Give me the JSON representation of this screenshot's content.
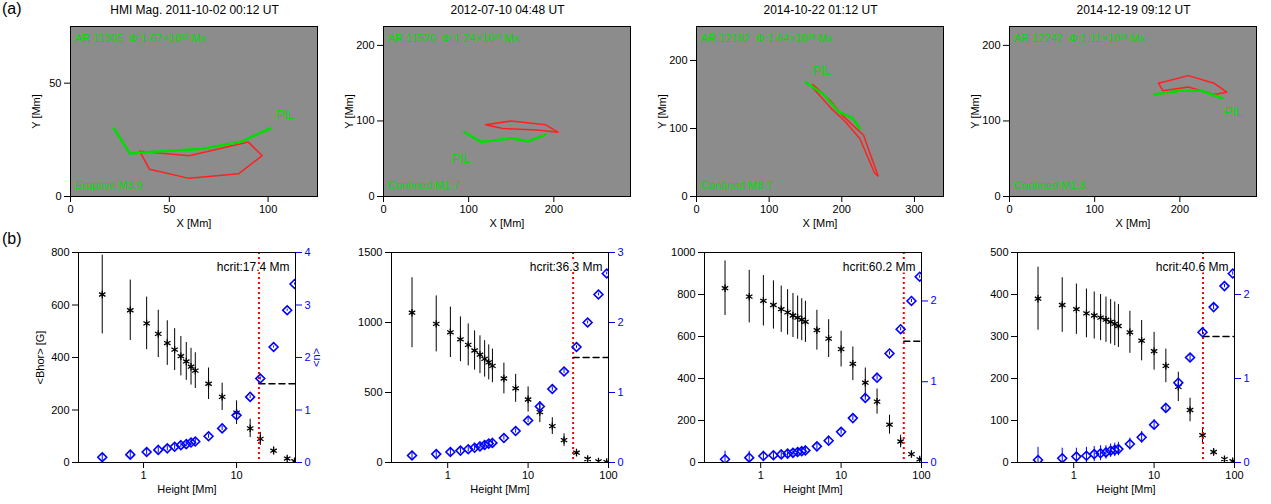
{
  "panel_labels": [
    "(a)",
    "(b)"
  ],
  "chart_data": [
    {
      "type": "magnetogram",
      "title": "HMI Mag. 2011-10-02 00:12 UT",
      "xlabel": "X [Mm]",
      "ylabel": "Y [Mm]",
      "xlim": [
        0,
        125
      ],
      "xticks": [
        0,
        50,
        100
      ],
      "ylim": [
        0,
        75
      ],
      "yticks": [
        0,
        50
      ],
      "color": "#00dd00",
      "ar_label": "AR 11305  Φ:1.67×10²² Mx",
      "flare_label": "Eruptive M3.9",
      "pil": {
        "label": "PIL",
        "x": [
          22,
          30,
          46,
          66,
          86,
          101
        ],
        "y": [
          30,
          19,
          20,
          21,
          24,
          30
        ],
        "label_x": 104,
        "label_y": 36
      },
      "contour": {
        "color": "#ff2020",
        "x": [
          35,
          40,
          60,
          85,
          97,
          90,
          60,
          35
        ],
        "y": [
          20,
          12,
          8,
          10,
          18,
          24,
          18,
          20
        ]
      }
    },
    {
      "type": "magnetogram",
      "title": "2012-07-10 04:48 UT",
      "xlabel": "X [Mm]",
      "ylabel": "Y [Mm]",
      "xlim": [
        0,
        290
      ],
      "xticks": [
        0,
        100,
        200
      ],
      "ylim": [
        0,
        225
      ],
      "yticks": [
        0,
        100,
        200
      ],
      "color": "#00dd00",
      "ar_label": "AR 11520  Φ:1.24×10²³ Mx",
      "flare_label": "Confined M1.7",
      "pil": {
        "label": "PIL",
        "x": [
          95,
          115,
          150,
          170,
          190
        ],
        "y": [
          85,
          72,
          77,
          73,
          82
        ],
        "label_x": 80,
        "label_y": 50
      },
      "contour": {
        "color": "#ff2020",
        "x": [
          120,
          150,
          190,
          205,
          180,
          140,
          120
        ],
        "y": [
          95,
          100,
          95,
          85,
          88,
          90,
          95
        ]
      }
    },
    {
      "type": "magnetogram",
      "title": "2014-10-22 01:12 UT",
      "xlabel": "X [Mm]",
      "ylabel": "Y [Mm]",
      "xlim": [
        0,
        340
      ],
      "xticks": [
        0,
        100,
        200,
        300
      ],
      "ylim": [
        0,
        250
      ],
      "yticks": [
        0,
        100,
        200
      ],
      "color": "#00dd00",
      "ar_label": "AR 12192  Φ:1.64×10²³ Mx",
      "flare_label": "Confined M8.7",
      "pil": {
        "label": "PIL",
        "x": [
          150,
          175,
          195,
          215,
          225
        ],
        "y": [
          168,
          150,
          125,
          115,
          100
        ],
        "label_x": 160,
        "label_y": 185
      },
      "contour": {
        "color": "#ff2020",
        "x": [
          160,
          185,
          200,
          215,
          230,
          240,
          250,
          245,
          225,
          205,
          185,
          160
        ],
        "y": [
          165,
          140,
          120,
          105,
          90,
          60,
          30,
          35,
          85,
          110,
          130,
          160
        ]
      }
    },
    {
      "type": "magnetogram",
      "title": "2014-12-19 09:12 UT",
      "xlabel": "X [Mm]",
      "ylabel": "Y [Mm]",
      "xlim": [
        0,
        290
      ],
      "xticks": [
        0,
        100,
        200
      ],
      "ylim": [
        0,
        225
      ],
      "yticks": [
        0,
        100,
        200
      ],
      "color": "#00dd00",
      "ar_label": "AR 12242  Φ:1.11×10²³ Mx",
      "flare_label": "Confined M1.3",
      "pil": {
        "label": "PIL",
        "x": [
          170,
          200,
          225,
          250
        ],
        "y": [
          135,
          140,
          140,
          130
        ],
        "label_x": 252,
        "label_y": 112
      },
      "contour": {
        "color": "#ff2020",
        "x": [
          175,
          210,
          240,
          255,
          240,
          210,
          180,
          175
        ],
        "y": [
          150,
          160,
          150,
          138,
          135,
          145,
          140,
          150
        ]
      }
    },
    {
      "type": "scatter",
      "log": "x",
      "xlabel": "Height [Mm]",
      "ylabel": "<Bhor> [G]",
      "y2label": "<n>",
      "xlim": [
        0.2,
        43
      ],
      "xticks": [
        1,
        10
      ],
      "ylim": [
        0,
        800
      ],
      "yticks": [
        0,
        200,
        400,
        600,
        800
      ],
      "y2lim": [
        0,
        4
      ],
      "y2ticks": [
        0,
        1,
        2,
        3,
        4
      ],
      "annotation": "hcrit:17.4 Mm",
      "hcrit": 17.4,
      "crit_n": 1.5,
      "x": [
        0.36,
        0.72,
        1.08,
        1.44,
        1.8,
        2.16,
        2.52,
        2.88,
        3.24,
        3.6,
        5,
        7,
        10,
        14,
        18,
        25,
        35,
        42
      ],
      "series": [
        {
          "color": "#000000",
          "marker": "asterisk",
          "values": [
            640,
            580,
            530,
            490,
            455,
            430,
            405,
            385,
            365,
            350,
            300,
            250,
            190,
            130,
            90,
            45,
            15,
            5
          ],
          "errors": [
            150,
            115,
            100,
            90,
            85,
            80,
            75,
            72,
            70,
            68,
            60,
            52,
            45,
            35,
            25,
            15,
            6,
            2
          ]
        },
        {
          "color": "#0000ff",
          "marker": "diamond",
          "axis": "y2",
          "values": [
            0.1,
            0.15,
            0.2,
            0.24,
            0.27,
            0.3,
            0.33,
            0.35,
            0.38,
            0.4,
            0.5,
            0.65,
            0.9,
            1.25,
            1.6,
            2.2,
            2.9,
            3.4
          ],
          "errors": [
            0.08,
            0.07,
            0.06,
            0.06,
            0.05,
            0.05,
            0.05,
            0.05,
            0.05,
            0.05,
            0.04,
            0.04,
            0.03,
            0.03,
            0.03,
            0.02,
            0.02,
            0.02
          ]
        }
      ]
    },
    {
      "type": "scatter",
      "log": "x",
      "xlabel": "Height [Mm]",
      "xlim": [
        0.2,
        100
      ],
      "xticks": [
        1,
        10,
        100
      ],
      "ylim": [
        0,
        1500
      ],
      "yticks": [
        0,
        500,
        1000,
        1500
      ],
      "y2lim": [
        0,
        3
      ],
      "y2ticks": [
        0,
        1,
        2,
        3
      ],
      "annotation": "hcrit:36.3 Mm",
      "hcrit": 36.3,
      "crit_n": 1.5,
      "x": [
        0.36,
        0.72,
        1.08,
        1.44,
        1.8,
        2.16,
        2.52,
        2.88,
        3.24,
        3.6,
        5,
        7,
        10,
        14,
        20,
        28,
        40,
        55,
        75,
        95
      ],
      "series": [
        {
          "color": "#000000",
          "marker": "asterisk",
          "values": [
            1070,
            990,
            930,
            880,
            840,
            800,
            770,
            740,
            715,
            690,
            600,
            530,
            450,
            360,
            260,
            160,
            70,
            25,
            8,
            3
          ],
          "errors": [
            250,
            200,
            180,
            160,
            150,
            140,
            135,
            130,
            125,
            120,
            110,
            100,
            90,
            75,
            60,
            45,
            25,
            10,
            4,
            2
          ]
        },
        {
          "color": "#0000ff",
          "marker": "diamond",
          "axis": "y2",
          "values": [
            0.1,
            0.12,
            0.15,
            0.17,
            0.19,
            0.21,
            0.23,
            0.25,
            0.27,
            0.28,
            0.35,
            0.45,
            0.6,
            0.8,
            1.05,
            1.3,
            1.65,
            2.0,
            2.4,
            2.7
          ],
          "errors": [
            0.06,
            0.05,
            0.05,
            0.04,
            0.04,
            0.04,
            0.04,
            0.04,
            0.04,
            0.04,
            0.03,
            0.03,
            0.03,
            0.03,
            0.03,
            0.03,
            0.02,
            0.02,
            0.02,
            0.02
          ]
        }
      ]
    },
    {
      "type": "scatter",
      "log": "x",
      "xlabel": "Height [Mm]",
      "xlim": [
        0.2,
        100
      ],
      "xticks": [
        1,
        10,
        100
      ],
      "ylim": [
        0,
        1000
      ],
      "yticks": [
        0,
        200,
        400,
        600,
        800,
        1000
      ],
      "y2lim": [
        0,
        2.6
      ],
      "y2ticks": [
        0,
        1,
        2
      ],
      "annotation": "hcrit:60.2 Mm",
      "hcrit": 60.2,
      "crit_n": 1.5,
      "x": [
        0.36,
        0.72,
        1.08,
        1.44,
        1.8,
        2.16,
        2.52,
        2.88,
        3.24,
        3.6,
        5,
        7,
        10,
        14,
        20,
        28,
        40,
        55,
        75,
        95
      ],
      "series": [
        {
          "color": "#000000",
          "marker": "asterisk",
          "values": [
            830,
            790,
            770,
            750,
            730,
            715,
            700,
            690,
            680,
            670,
            630,
            590,
            540,
            470,
            380,
            290,
            180,
            100,
            40,
            15
          ],
          "errors": [
            130,
            125,
            120,
            115,
            110,
            108,
            105,
            103,
            100,
            98,
            95,
            90,
            85,
            80,
            70,
            60,
            45,
            30,
            15,
            6
          ]
        },
        {
          "color": "#0000ff",
          "marker": "diamond",
          "axis": "y2",
          "values": [
            0.04,
            0.06,
            0.08,
            0.09,
            0.1,
            0.11,
            0.12,
            0.13,
            0.14,
            0.15,
            0.2,
            0.27,
            0.38,
            0.55,
            0.8,
            1.05,
            1.35,
            1.65,
            2.0,
            2.3
          ],
          "errors": [
            0.1,
            0.08,
            0.06,
            0.05,
            0.05,
            0.05,
            0.05,
            0.05,
            0.04,
            0.04,
            0.04,
            0.04,
            0.03,
            0.03,
            0.03,
            0.03,
            0.02,
            0.02,
            0.02,
            0.02
          ]
        }
      ]
    },
    {
      "type": "scatter",
      "log": "x",
      "xlabel": "Height [Mm]",
      "xlim": [
        0.2,
        100
      ],
      "xticks": [
        1,
        10,
        100
      ],
      "ylim": [
        0,
        500
      ],
      "yticks": [
        0,
        100,
        200,
        300,
        400,
        500
      ],
      "y2lim": [
        0,
        2.5
      ],
      "y2ticks": [
        0,
        1,
        2
      ],
      "annotation": "hcrit:40.6 Mm",
      "hcrit": 40.6,
      "crit_n": 1.5,
      "x": [
        0.36,
        0.72,
        1.08,
        1.44,
        1.8,
        2.16,
        2.52,
        2.88,
        3.24,
        3.6,
        5,
        7,
        10,
        14,
        20,
        28,
        40,
        55,
        75,
        95
      ],
      "series": [
        {
          "color": "#000000",
          "marker": "asterisk",
          "values": [
            390,
            375,
            365,
            355,
            350,
            345,
            340,
            335,
            330,
            325,
            310,
            290,
            265,
            230,
            180,
            125,
            65,
            25,
            8,
            3
          ],
          "errors": [
            75,
            65,
            60,
            58,
            56,
            55,
            54,
            53,
            52,
            51,
            50,
            48,
            45,
            40,
            35,
            28,
            18,
            8,
            3,
            1
          ]
        },
        {
          "color": "#0000ff",
          "marker": "diamond",
          "axis": "y2",
          "values": [
            0.03,
            0.05,
            0.07,
            0.08,
            0.1,
            0.11,
            0.12,
            0.14,
            0.15,
            0.16,
            0.22,
            0.3,
            0.45,
            0.65,
            0.95,
            1.25,
            1.55,
            1.85,
            2.1,
            2.25
          ],
          "errors": [
            0.15,
            0.12,
            0.1,
            0.1,
            0.09,
            0.09,
            0.08,
            0.08,
            0.08,
            0.08,
            0.07,
            0.07,
            0.06,
            0.05,
            0.05,
            0.04,
            0.03,
            0.03,
            0.02,
            0.02
          ]
        }
      ]
    }
  ]
}
